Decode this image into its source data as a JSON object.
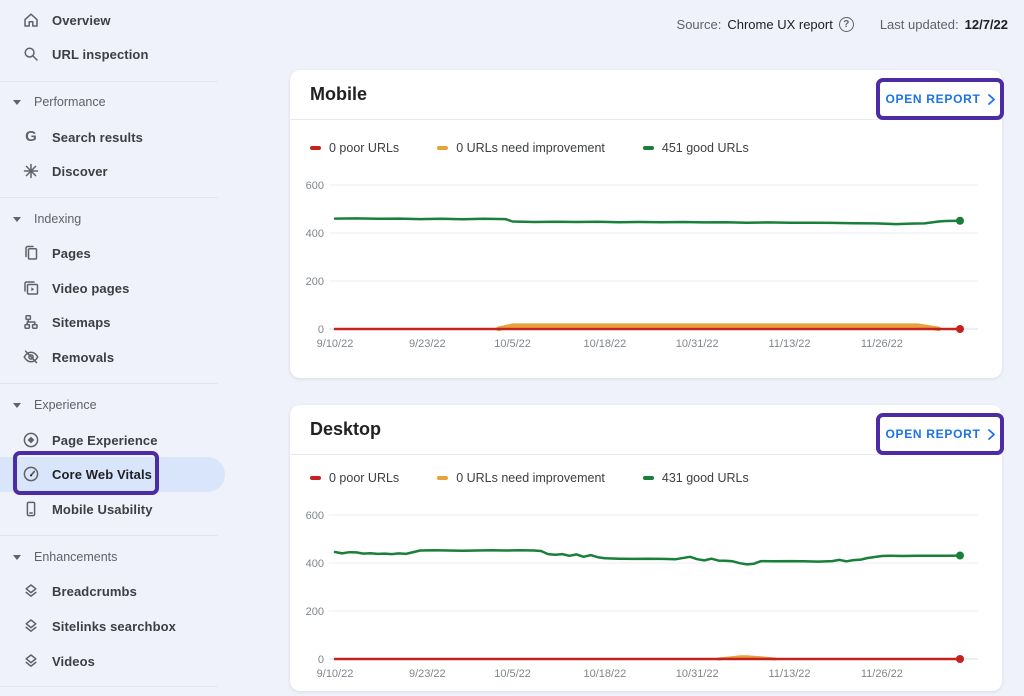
{
  "header": {
    "source_label": "Source:",
    "source_value": "Chrome UX report",
    "help_glyph": "?",
    "updated_label": "Last updated:",
    "updated_value": "12/7/22"
  },
  "sidebar": {
    "top_items": [
      {
        "label": "Overview",
        "icon": "home-icon"
      },
      {
        "label": "URL inspection",
        "icon": "search-icon"
      }
    ],
    "sections": [
      {
        "label": "Performance",
        "items": [
          {
            "label": "Search results",
            "icon": "google-g-icon"
          },
          {
            "label": "Discover",
            "icon": "discover-spark-icon"
          }
        ]
      },
      {
        "label": "Indexing",
        "items": [
          {
            "label": "Pages",
            "icon": "pages-icon"
          },
          {
            "label": "Video pages",
            "icon": "video-pages-icon"
          },
          {
            "label": "Sitemaps",
            "icon": "sitemap-icon"
          },
          {
            "label": "Removals",
            "icon": "eye-off-icon"
          }
        ]
      },
      {
        "label": "Experience",
        "items": [
          {
            "label": "Page Experience",
            "icon": "page-experience-icon"
          },
          {
            "label": "Core Web Vitals",
            "icon": "speedometer-icon",
            "selected": true
          },
          {
            "label": "Mobile Usability",
            "icon": "smartphone-icon"
          }
        ]
      },
      {
        "label": "Enhancements",
        "items": [
          {
            "label": "Breadcrumbs",
            "icon": "layers-icon"
          },
          {
            "label": "Sitelinks searchbox",
            "icon": "layers-icon"
          },
          {
            "label": "Videos",
            "icon": "layers-icon"
          }
        ]
      }
    ]
  },
  "cards": [
    {
      "title": "Mobile",
      "open_report_label": "OPEN REPORT"
    },
    {
      "title": "Desktop",
      "open_report_label": "OPEN REPORT"
    }
  ],
  "colors": {
    "accent_blue": "#1a73e8",
    "annotation_purple": "#4b2ca5",
    "selected_pill_blue": "#d9e5fb",
    "poor_red": "#c5221f",
    "needs_improvement_orange": "#e9a13b",
    "good_green": "#188038",
    "page_background": "#eff1fb",
    "card_background": "#ffffff"
  },
  "chart_data": [
    {
      "type": "line",
      "title": "Mobile",
      "x_unit": "days since 9/10/22",
      "x_max": 88,
      "xticks": [
        {
          "day": 0,
          "label": "9/10/22"
        },
        {
          "day": 13,
          "label": "9/23/22"
        },
        {
          "day": 25,
          "label": "10/5/22"
        },
        {
          "day": 38,
          "label": "10/18/22"
        },
        {
          "day": 51,
          "label": "10/31/22"
        },
        {
          "day": 64,
          "label": "11/13/22"
        },
        {
          "day": 77,
          "label": "11/26/22"
        }
      ],
      "yticks": [
        0,
        200,
        400,
        600
      ],
      "ylim": [
        0,
        640
      ],
      "grid": true,
      "legend_position": "top",
      "series": [
        {
          "name": "poor URLs",
          "legend": "0 poor URLs",
          "color": "#c5221f",
          "width": 2.5,
          "z": 2,
          "end_dot": true,
          "points": [
            [
              0,
              0
            ],
            [
              88,
              0
            ]
          ]
        },
        {
          "name": "URLs need improvement",
          "legend": "0 URLs need improvement",
          "color": "#e9a13b",
          "width": 4.5,
          "z": 1,
          "end_dot": false,
          "points": [
            [
              23,
              1
            ],
            [
              25,
              14
            ],
            [
              82,
              14
            ],
            [
              85,
              1
            ]
          ]
        },
        {
          "name": "good URLs",
          "legend": "451 good URLs",
          "color": "#188038",
          "width": 2.5,
          "z": 3,
          "end_dot": true,
          "points": [
            [
              0,
              460
            ],
            [
              3,
              461
            ],
            [
              6,
              459
            ],
            [
              9,
              460
            ],
            [
              12,
              458
            ],
            [
              15,
              459
            ],
            [
              18,
              457
            ],
            [
              21,
              459
            ],
            [
              24,
              458
            ],
            [
              25,
              448
            ],
            [
              28,
              446
            ],
            [
              31,
              447
            ],
            [
              34,
              446
            ],
            [
              37,
              447
            ],
            [
              40,
              445
            ],
            [
              43,
              446
            ],
            [
              46,
              445
            ],
            [
              49,
              446
            ],
            [
              52,
              444
            ],
            [
              55,
              445
            ],
            [
              58,
              443
            ],
            [
              61,
              444
            ],
            [
              64,
              443
            ],
            [
              67,
              443
            ],
            [
              70,
              442
            ],
            [
              73,
              441
            ],
            [
              76,
              440
            ],
            [
              79,
              437
            ],
            [
              81,
              439
            ],
            [
              83,
              440
            ],
            [
              85,
              448
            ],
            [
              86,
              450
            ],
            [
              88,
              451
            ]
          ]
        }
      ]
    },
    {
      "type": "line",
      "title": "Desktop",
      "x_unit": "days since 9/10/22",
      "x_max": 88,
      "xticks": [
        {
          "day": 0,
          "label": "9/10/22"
        },
        {
          "day": 13,
          "label": "9/23/22"
        },
        {
          "day": 25,
          "label": "10/5/22"
        },
        {
          "day": 38,
          "label": "10/18/22"
        },
        {
          "day": 51,
          "label": "10/31/22"
        },
        {
          "day": 64,
          "label": "11/13/22"
        },
        {
          "day": 77,
          "label": "11/26/22"
        }
      ],
      "yticks": [
        0,
        200,
        400,
        600
      ],
      "ylim": [
        0,
        640
      ],
      "grid": true,
      "legend_position": "top",
      "series": [
        {
          "name": "poor URLs",
          "legend": "0 poor URLs",
          "color": "#c5221f",
          "width": 2.5,
          "z": 2,
          "end_dot": true,
          "points": [
            [
              0,
              0
            ],
            [
              88,
              0
            ]
          ]
        },
        {
          "name": "URLs need improvement",
          "legend": "0 URLs need improvement",
          "color": "#e9a13b",
          "width": 3,
          "z": 1,
          "end_dot": false,
          "points": [
            [
              54,
              0
            ],
            [
              56,
              6
            ],
            [
              57,
              9
            ],
            [
              58,
              9
            ],
            [
              60,
              5
            ],
            [
              62,
              0
            ]
          ]
        },
        {
          "name": "good URLs",
          "legend": "431 good URLs",
          "color": "#188038",
          "width": 2.5,
          "z": 3,
          "end_dot": true,
          "points": [
            [
              0,
              446
            ],
            [
              1,
              440
            ],
            [
              2,
              445
            ],
            [
              3,
              444
            ],
            [
              4,
              439
            ],
            [
              5,
              441
            ],
            [
              6,
              438
            ],
            [
              7,
              439
            ],
            [
              8,
              437
            ],
            [
              9,
              440
            ],
            [
              10,
              438
            ],
            [
              12,
              452
            ],
            [
              14,
              453
            ],
            [
              16,
              452
            ],
            [
              18,
              451
            ],
            [
              20,
              452
            ],
            [
              22,
              453
            ],
            [
              24,
              452
            ],
            [
              26,
              453
            ],
            [
              28,
              452
            ],
            [
              29,
              450
            ],
            [
              30,
              437
            ],
            [
              31,
              434
            ],
            [
              32,
              437
            ],
            [
              33,
              430
            ],
            [
              34,
              436
            ],
            [
              35,
              426
            ],
            [
              36,
              433
            ],
            [
              37,
              424
            ],
            [
              38,
              420
            ],
            [
              40,
              418
            ],
            [
              42,
              417
            ],
            [
              44,
              418
            ],
            [
              46,
              417
            ],
            [
              48,
              416
            ],
            [
              50,
              426
            ],
            [
              51,
              416
            ],
            [
              52,
              411
            ],
            [
              53,
              418
            ],
            [
              54,
              410
            ],
            [
              55,
              409
            ],
            [
              56,
              407
            ],
            [
              57,
              399
            ],
            [
              58,
              394
            ],
            [
              59,
              397
            ],
            [
              60,
              408
            ],
            [
              62,
              407
            ],
            [
              64,
              408
            ],
            [
              66,
              407
            ],
            [
              68,
              406
            ],
            [
              70,
              408
            ],
            [
              71,
              413
            ],
            [
              72,
              407
            ],
            [
              73,
              412
            ],
            [
              74,
              414
            ],
            [
              75,
              421
            ],
            [
              76,
              425
            ],
            [
              77,
              429
            ],
            [
              78,
              430
            ],
            [
              80,
              429
            ],
            [
              82,
              430
            ],
            [
              84,
              430
            ],
            [
              86,
              430
            ],
            [
              88,
              431
            ]
          ]
        }
      ]
    }
  ]
}
